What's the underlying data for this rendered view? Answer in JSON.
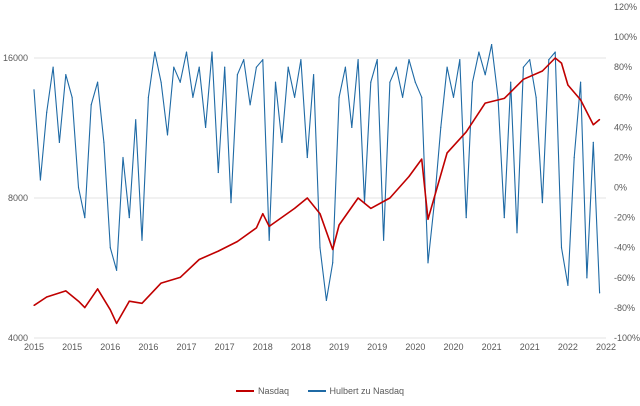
{
  "chart_data": {
    "type": "line",
    "x_labels": [
      "2015",
      "2015",
      "2016",
      "2016",
      "2017",
      "2017",
      "2018",
      "2018",
      "2019",
      "2019",
      "2020",
      "2020",
      "2021",
      "2021",
      "2022",
      "2022"
    ],
    "y_left_ticks": [
      "16000",
      "8000",
      "4000"
    ],
    "y_left_scale": "log",
    "ylim_left": [
      4000,
      16000
    ],
    "y_right_ticks": [
      "120%",
      "100%",
      "80%",
      "60%",
      "40%",
      "20%",
      "0%",
      "-20%",
      "-40%",
      "-60%",
      "-80%",
      "-100%"
    ],
    "ylim_right": [
      -100,
      120
    ],
    "grid": "horizontal",
    "legend_position": "bottom",
    "series": [
      {
        "name": "Nasdaq",
        "axis": "left",
        "color": "#c00000",
        "points": [
          [
            "2015-01",
            4700
          ],
          [
            "2015-03",
            4900
          ],
          [
            "2015-06",
            5050
          ],
          [
            "2015-08",
            4800
          ],
          [
            "2015-09",
            4650
          ],
          [
            "2015-11",
            5100
          ],
          [
            "2016-01",
            4600
          ],
          [
            "2016-02",
            4300
          ],
          [
            "2016-04",
            4800
          ],
          [
            "2016-06",
            4750
          ],
          [
            "2016-09",
            5250
          ],
          [
            "2016-12",
            5400
          ],
          [
            "2017-03",
            5900
          ],
          [
            "2017-06",
            6150
          ],
          [
            "2017-09",
            6450
          ],
          [
            "2017-12",
            6900
          ],
          [
            "2018-01",
            7400
          ],
          [
            "2018-02",
            6950
          ],
          [
            "2018-06",
            7600
          ],
          [
            "2018-08",
            8000
          ],
          [
            "2018-10",
            7400
          ],
          [
            "2018-12",
            6200
          ],
          [
            "2019-01",
            7000
          ],
          [
            "2019-04",
            8000
          ],
          [
            "2019-06",
            7600
          ],
          [
            "2019-09",
            8000
          ],
          [
            "2019-12",
            8900
          ],
          [
            "2020-02",
            9700
          ],
          [
            "2020-03",
            7200
          ],
          [
            "2020-06",
            10000
          ],
          [
            "2020-09",
            11100
          ],
          [
            "2020-12",
            12800
          ],
          [
            "2021-03",
            13100
          ],
          [
            "2021-06",
            14400
          ],
          [
            "2021-09",
            15000
          ],
          [
            "2021-11",
            16000
          ],
          [
            "2021-12",
            15600
          ],
          [
            "2022-01",
            14000
          ],
          [
            "2022-03",
            13000
          ],
          [
            "2022-05",
            11500
          ],
          [
            "2022-06",
            11800
          ]
        ]
      },
      {
        "name": "Hulbert zu Nasdaq",
        "axis": "right",
        "color": "#1f6aa5",
        "points": [
          [
            "2015-01",
            65
          ],
          [
            "2015-02",
            5
          ],
          [
            "2015-03",
            50
          ],
          [
            "2015-04",
            80
          ],
          [
            "2015-05",
            30
          ],
          [
            "2015-06",
            75
          ],
          [
            "2015-07",
            60
          ],
          [
            "2015-08",
            0
          ],
          [
            "2015-09",
            -20
          ],
          [
            "2015-10",
            55
          ],
          [
            "2015-11",
            70
          ],
          [
            "2015-12",
            30
          ],
          [
            "2016-01",
            -40
          ],
          [
            "2016-02",
            -55
          ],
          [
            "2016-03",
            20
          ],
          [
            "2016-04",
            -20
          ],
          [
            "2016-05",
            45
          ],
          [
            "2016-06",
            -35
          ],
          [
            "2016-07",
            60
          ],
          [
            "2016-08",
            90
          ],
          [
            "2016-09",
            70
          ],
          [
            "2016-10",
            35
          ],
          [
            "2016-11",
            80
          ],
          [
            "2016-12",
            70
          ],
          [
            "2017-01",
            90
          ],
          [
            "2017-02",
            60
          ],
          [
            "2017-03",
            80
          ],
          [
            "2017-04",
            40
          ],
          [
            "2017-05",
            90
          ],
          [
            "2017-06",
            10
          ],
          [
            "2017-07",
            80
          ],
          [
            "2017-08",
            -10
          ],
          [
            "2017-09",
            75
          ],
          [
            "2017-10",
            85
          ],
          [
            "2017-11",
            55
          ],
          [
            "2017-12",
            80
          ],
          [
            "2018-01",
            85
          ],
          [
            "2018-02",
            -35
          ],
          [
            "2018-03",
            70
          ],
          [
            "2018-04",
            30
          ],
          [
            "2018-05",
            80
          ],
          [
            "2018-06",
            60
          ],
          [
            "2018-07",
            85
          ],
          [
            "2018-08",
            20
          ],
          [
            "2018-09",
            75
          ],
          [
            "2018-10",
            -40
          ],
          [
            "2018-11",
            -75
          ],
          [
            "2018-12",
            -50
          ],
          [
            "2019-01",
            60
          ],
          [
            "2019-02",
            80
          ],
          [
            "2019-03",
            40
          ],
          [
            "2019-04",
            85
          ],
          [
            "2019-05",
            -10
          ],
          [
            "2019-06",
            70
          ],
          [
            "2019-07",
            85
          ],
          [
            "2019-08",
            -35
          ],
          [
            "2019-09",
            70
          ],
          [
            "2019-10",
            80
          ],
          [
            "2019-11",
            60
          ],
          [
            "2019-12",
            85
          ],
          [
            "2020-01",
            70
          ],
          [
            "2020-02",
            60
          ],
          [
            "2020-03",
            -50
          ],
          [
            "2020-04",
            -10
          ],
          [
            "2020-05",
            40
          ],
          [
            "2020-06",
            80
          ],
          [
            "2020-07",
            60
          ],
          [
            "2020-08",
            85
          ],
          [
            "2020-09",
            -20
          ],
          [
            "2020-10",
            70
          ],
          [
            "2020-11",
            90
          ],
          [
            "2020-12",
            75
          ],
          [
            "2021-01",
            95
          ],
          [
            "2021-02",
            60
          ],
          [
            "2021-03",
            -20
          ],
          [
            "2021-04",
            70
          ],
          [
            "2021-05",
            -30
          ],
          [
            "2021-06",
            80
          ],
          [
            "2021-07",
            85
          ],
          [
            "2021-08",
            60
          ],
          [
            "2021-09",
            -10
          ],
          [
            "2021-10",
            85
          ],
          [
            "2021-11",
            90
          ],
          [
            "2021-12",
            -40
          ],
          [
            "2022-01",
            -65
          ],
          [
            "2022-02",
            20
          ],
          [
            "2022-03",
            70
          ],
          [
            "2022-04",
            -60
          ],
          [
            "2022-05",
            30
          ],
          [
            "2022-06",
            -70
          ]
        ]
      }
    ]
  },
  "legend": [
    {
      "label": "Nasdaq",
      "color": "#c00000"
    },
    {
      "label": "Hulbert zu Nasdaq",
      "color": "#1f6aa5"
    }
  ]
}
